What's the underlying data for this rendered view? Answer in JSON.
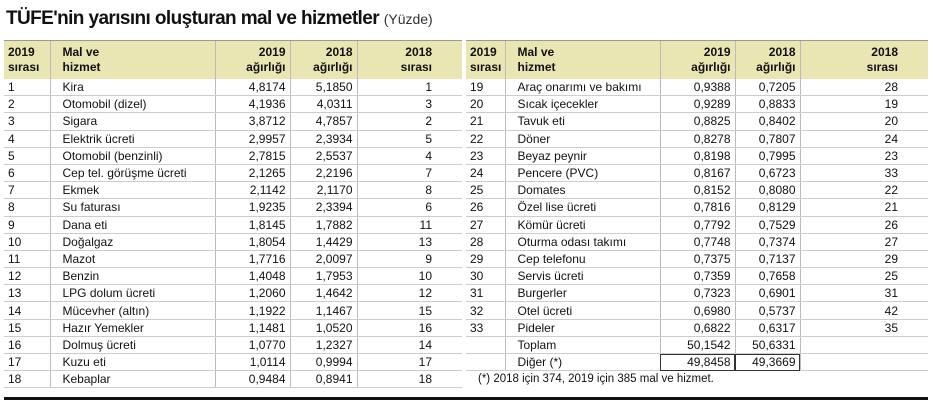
{
  "header": {
    "title": "TÜFE'nin yarısını oluşturan mal ve hizmetler",
    "unit": "(Yüzde)"
  },
  "left_table": {
    "columns": [
      [
        "2019",
        "sırası"
      ],
      [
        "Mal ve",
        "hizmet"
      ],
      [
        "2019",
        "ağırlığı"
      ],
      [
        "2018",
        "ağırlığı"
      ],
      [
        "2018",
        "sırası"
      ]
    ],
    "rows": [
      [
        "1",
        "Kira",
        "4,8174",
        "5,1850",
        "1"
      ],
      [
        "2",
        "Otomobil (dizel)",
        "4,1936",
        "4,0311",
        "3"
      ],
      [
        "3",
        "Sigara",
        "3,8712",
        "4,7857",
        "2"
      ],
      [
        "4",
        "Elektrik ücreti",
        "2,9957",
        "2,3934",
        "5"
      ],
      [
        "5",
        "Otomobil (benzinli)",
        "2,7815",
        "2,5537",
        "4"
      ],
      [
        "6",
        "Cep tel. görüşme ücreti",
        "2,1265",
        "2,2196",
        "7"
      ],
      [
        "7",
        "Ekmek",
        "2,1142",
        "2,1170",
        "8"
      ],
      [
        "8",
        "Su faturası",
        "1,9235",
        "2,3394",
        "6"
      ],
      [
        "9",
        "Dana eti",
        "1,8145",
        "1,7882",
        "11"
      ],
      [
        "10",
        "Doğalgaz",
        "1,8054",
        "1,4429",
        "13"
      ],
      [
        "11",
        "Mazot",
        "1,7716",
        "2,0097",
        "9"
      ],
      [
        "12",
        "Benzin",
        "1,4048",
        "1,7953",
        "10"
      ],
      [
        "13",
        "LPG dolum ücreti",
        "1,2060",
        "1,4642",
        "12"
      ],
      [
        "14",
        "Mücevher (altın)",
        "1,1922",
        "1,1467",
        "15"
      ],
      [
        "15",
        "Hazır Yemekler",
        "1,1481",
        "1,0520",
        "16"
      ],
      [
        "16",
        "Dolmuş ücreti",
        "1,0770",
        "1,2327",
        "14"
      ],
      [
        "17",
        "Kuzu eti",
        "1,0114",
        "0,9994",
        "17"
      ],
      [
        "18",
        "Kebaplar",
        "0,9484",
        "0,8941",
        "18"
      ]
    ]
  },
  "right_table": {
    "columns": [
      [
        "2019",
        "sırası"
      ],
      [
        "Mal ve",
        "hizmet"
      ],
      [
        "2019",
        "ağırlığı"
      ],
      [
        "2018",
        "ağırlığı"
      ],
      [
        "2018",
        "sırası"
      ]
    ],
    "rows": [
      [
        "19",
        "Araç onarımı ve bakımı",
        "0,9388",
        "0,7205",
        "28"
      ],
      [
        "20",
        "Sıcak içecekler",
        "0,9289",
        "0,8833",
        "19"
      ],
      [
        "21",
        "Tavuk eti",
        "0,8825",
        "0,8402",
        "20"
      ],
      [
        "22",
        "Döner",
        "0,8278",
        "0,7807",
        "24"
      ],
      [
        "23",
        "Beyaz peynir",
        "0,8198",
        "0,7995",
        "23"
      ],
      [
        "24",
        "Pencere (PVC)",
        "0,8167",
        "0,6723",
        "33"
      ],
      [
        "25",
        "Domates",
        "0,8152",
        "0,8080",
        "22"
      ],
      [
        "26",
        "Özel lise ücreti",
        "0,7816",
        "0,8129",
        "21"
      ],
      [
        "27",
        "Kömür ücreti",
        "0,7792",
        "0,7529",
        "26"
      ],
      [
        "28",
        "Oturma odası takımı",
        "0,7748",
        "0,7374",
        "27"
      ],
      [
        "29",
        "Cep telefonu",
        "0,7375",
        "0,7137",
        "29"
      ],
      [
        "30",
        "Servis ücreti",
        "0,7359",
        "0,7658",
        "25"
      ],
      [
        "31",
        "Burgerler",
        "0,7323",
        "0,6901",
        "31"
      ],
      [
        "32",
        "Otel ücreti",
        "0,6980",
        "0,5737",
        "42"
      ],
      [
        "33",
        "Pideler",
        "0,6822",
        "0,6317",
        "35"
      ]
    ],
    "totals": [
      [
        "Toplam",
        "50,1542",
        "50,6331"
      ],
      [
        "Diğer (*)",
        "49,8458",
        "49,3669"
      ]
    ],
    "footnote": "(*) 2018 için 374, 2019 için 385 mal ve hizmet."
  }
}
